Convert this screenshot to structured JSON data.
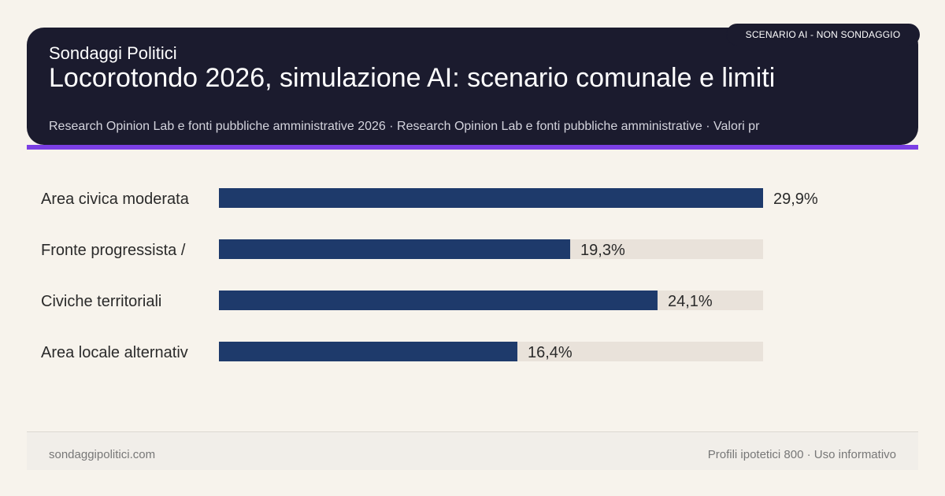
{
  "header": {
    "brand": "Sondaggi Politici",
    "title": "Locorotondo 2026, simulazione AI: scenario comunale e limiti",
    "subtitle": "Research Opinion Lab e fonti pubbliche amministrative 2026 · Research Opinion Lab e fonti pubbliche amministrative · Valori pr",
    "badge": "SCENARIO AI - NON SONDAGGIO"
  },
  "colors": {
    "header_bg": "#1b1b2e",
    "accent": "#7b3fe4",
    "bar": "#1e3a6b",
    "track": "#e9e2da",
    "background": "#f7f3ec"
  },
  "chart_data": {
    "type": "bar",
    "orientation": "horizontal",
    "categories": [
      "Area civica moderata",
      "Fronte progressista /",
      "Civiche territoriali",
      "Area locale alternativ"
    ],
    "values": [
      29.9,
      19.3,
      24.1,
      16.4
    ],
    "value_labels": [
      "29,9%",
      "19,3%",
      "24,1%",
      "16,4%"
    ],
    "xlim": [
      0,
      29.9
    ],
    "grid": false,
    "legend": "none"
  },
  "footer": {
    "left": "sondaggipolitici.com",
    "right": "Profili ipotetici 800 · Uso informativo"
  }
}
